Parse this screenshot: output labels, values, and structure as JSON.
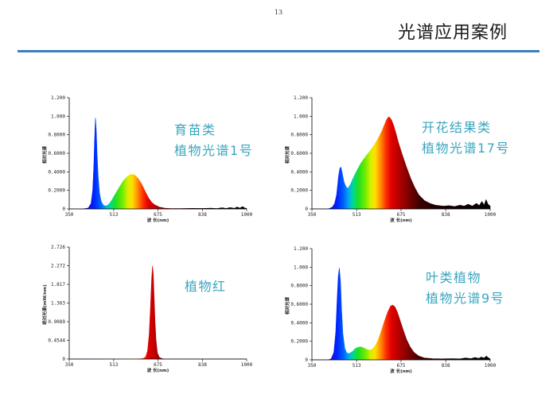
{
  "page": {
    "number": "13",
    "title": "光谱应用案例"
  },
  "colors": {
    "rule": "#3b7ebf",
    "annotation": "#3aa6bf"
  },
  "chart_data": [
    {
      "type": "area",
      "annotation": [
        "育苗类",
        "植物光谱1号"
      ],
      "xlabel": "波 长(nm)",
      "ylabel": "相对光谱",
      "xlim": [
        350,
        1000
      ],
      "ylim": [
        0,
        1.2
      ],
      "xticks": [
        "350",
        "513",
        "675",
        "838",
        "1000"
      ],
      "yticks": [
        "0",
        "0.2000",
        "0.4000",
        "0.6000",
        "0.8000",
        "1.000",
        "1.200"
      ],
      "series": [
        {
          "x": [
            350,
            400,
            420,
            430,
            436,
            440,
            443,
            446,
            449,
            452,
            456,
            461,
            467,
            475,
            485,
            495,
            505,
            515,
            525,
            537,
            550,
            565,
            578,
            590,
            602,
            615,
            628,
            640,
            652,
            665,
            680,
            700,
            720,
            760,
            800,
            840,
            870,
            890,
            910,
            925,
            940,
            955,
            965,
            975,
            985,
            993,
            1000
          ],
          "y": [
            0,
            0,
            0.01,
            0.06,
            0.2,
            0.45,
            0.75,
            0.98,
            0.85,
            0.6,
            0.35,
            0.17,
            0.08,
            0.04,
            0.03,
            0.05,
            0.09,
            0.14,
            0.19,
            0.25,
            0.31,
            0.355,
            0.375,
            0.365,
            0.33,
            0.27,
            0.19,
            0.12,
            0.07,
            0.04,
            0.02,
            0.008,
            0.004,
            0.004,
            0.006,
            0.005,
            0.008,
            0.004,
            0.012,
            0.005,
            0.015,
            0.006,
            0.02,
            0.008,
            0.025,
            0.01,
            0.004
          ]
        }
      ]
    },
    {
      "type": "area",
      "annotation": [
        "开花结果类",
        "植物光谱17号"
      ],
      "xlabel": "波 长(nm)",
      "ylabel": "相对光谱",
      "xlim": [
        350,
        1000
      ],
      "ylim": [
        0,
        1.2
      ],
      "xticks": [
        "350",
        "513",
        "675",
        "838",
        "1000"
      ],
      "yticks": [
        "0",
        "0.2000",
        "0.4000",
        "0.6000",
        "0.8000",
        "1.000",
        "1.200"
      ],
      "series": [
        {
          "x": [
            350,
            410,
            425,
            433,
            440,
            447,
            452,
            456,
            461,
            467,
            474,
            481,
            490,
            500,
            515,
            530,
            545,
            560,
            575,
            590,
            605,
            615,
            622,
            628,
            633,
            640,
            648,
            656,
            665,
            680,
            695,
            710,
            725,
            740,
            760,
            780,
            800,
            830,
            850,
            870,
            890,
            905,
            920,
            935,
            950,
            960,
            970,
            978,
            985,
            992,
            1000
          ],
          "y": [
            0,
            0,
            0.02,
            0.06,
            0.15,
            0.35,
            0.44,
            0.45,
            0.38,
            0.29,
            0.24,
            0.22,
            0.26,
            0.33,
            0.42,
            0.5,
            0.56,
            0.62,
            0.68,
            0.75,
            0.84,
            0.91,
            0.96,
            0.99,
            0.99,
            0.96,
            0.9,
            0.82,
            0.72,
            0.58,
            0.45,
            0.33,
            0.23,
            0.15,
            0.09,
            0.06,
            0.04,
            0.03,
            0.035,
            0.025,
            0.04,
            0.03,
            0.05,
            0.03,
            0.06,
            0.035,
            0.08,
            0.04,
            0.1,
            0.05,
            0.03
          ]
        }
      ]
    },
    {
      "type": "area",
      "annotation": [
        "植物红"
      ],
      "xlabel": "波 长(nm)",
      "ylabel": "绝对光谱(mW/nm)",
      "xlim": [
        350,
        1000
      ],
      "ylim": [
        0,
        2.726
      ],
      "xticks": [
        "350",
        "513",
        "675",
        "838",
        "1000"
      ],
      "yticks": [
        "0",
        "0.4544",
        "0.9089",
        "1.363",
        "1.817",
        "2.272",
        "2.726"
      ],
      "series": [
        {
          "x": [
            350,
            600,
            620,
            630,
            637,
            643,
            648,
            652,
            655,
            658,
            661,
            664,
            668,
            673,
            680,
            690,
            700,
            1000
          ],
          "y": [
            0,
            0,
            0.01,
            0.05,
            0.2,
            0.6,
            1.3,
            1.95,
            2.26,
            2.05,
            1.5,
            0.95,
            0.45,
            0.15,
            0.04,
            0.01,
            0,
            0
          ]
        }
      ]
    },
    {
      "type": "area",
      "annotation": [
        "叶类植物",
        "植物光谱9号"
      ],
      "xlabel": "波 长(nm)",
      "ylabel": "相对光谱",
      "xlim": [
        350,
        1000
      ],
      "ylim": [
        0,
        1.2
      ],
      "xticks": [
        "350",
        "513",
        "675",
        "838",
        "1000"
      ],
      "yticks": [
        "0",
        "0.2000",
        "0.4000",
        "0.6000",
        "0.8000",
        "1.000",
        "1.200"
      ],
      "series": [
        {
          "x": [
            350,
            410,
            420,
            430,
            437,
            442,
            446,
            450,
            454,
            458,
            463,
            470,
            478,
            488,
            498,
            508,
            518,
            528,
            538,
            548,
            558,
            568,
            578,
            590,
            602,
            615,
            627,
            637,
            645,
            653,
            662,
            672,
            682,
            695,
            708,
            722,
            740,
            760,
            790,
            820,
            860,
            890,
            910,
            930,
            945,
            958,
            968,
            978,
            986,
            994,
            1000
          ],
          "y": [
            0,
            0,
            0.01,
            0.08,
            0.3,
            0.65,
            0.9,
            0.99,
            0.85,
            0.55,
            0.28,
            0.12,
            0.07,
            0.07,
            0.09,
            0.12,
            0.135,
            0.14,
            0.13,
            0.115,
            0.105,
            0.11,
            0.14,
            0.2,
            0.3,
            0.42,
            0.52,
            0.58,
            0.59,
            0.57,
            0.51,
            0.42,
            0.33,
            0.22,
            0.14,
            0.08,
            0.04,
            0.02,
            0.012,
            0.01,
            0.012,
            0.01,
            0.02,
            0.012,
            0.025,
            0.015,
            0.03,
            0.018,
            0.04,
            0.02,
            0.01
          ]
        }
      ]
    }
  ]
}
